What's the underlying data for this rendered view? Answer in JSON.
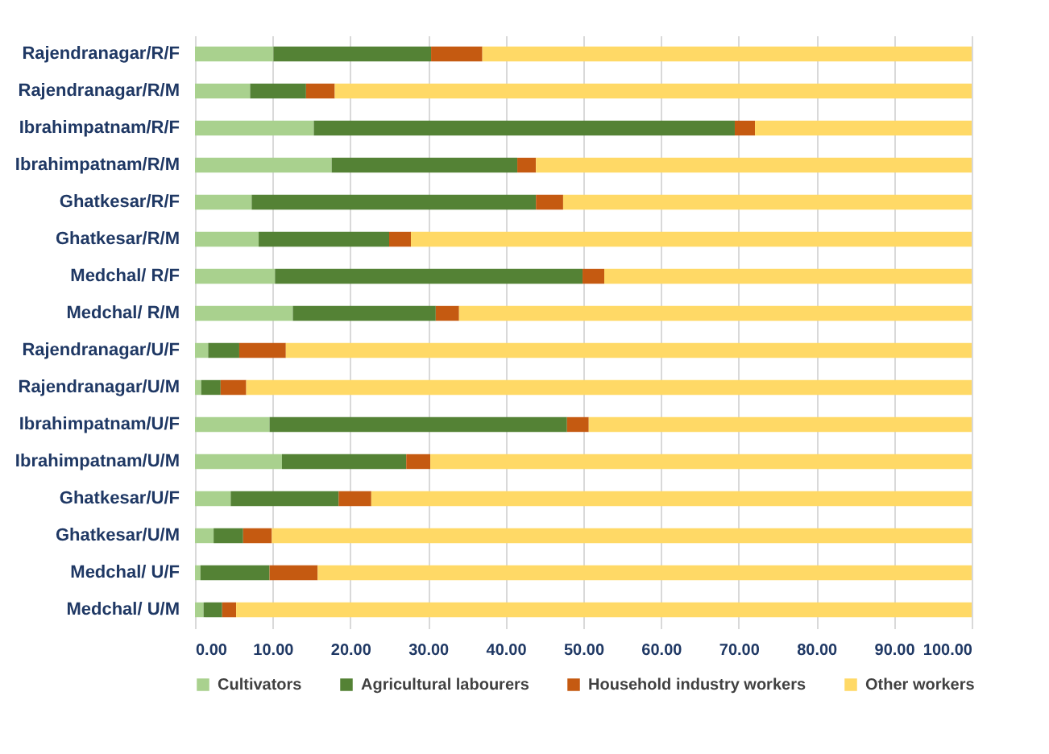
{
  "chart_data": {
    "type": "bar",
    "orientation": "horizontal",
    "stacked": true,
    "grid": "x",
    "legend": "bottom",
    "categories": [
      "Rajendranagar/R/F",
      "Rajendranagar/R/M",
      "Ibrahimpatnam/R/F",
      "Ibrahimpatnam/R/M",
      "Ghatkesar/R/F",
      "Ghatkesar/R/M",
      "Medchal/ R/F",
      "Medchal/ R/M",
      "Rajendranagar/U/F",
      "Rajendranagar/U/M",
      "Ibrahimpatnam/U/F",
      "Ibrahimpatnam/U/M",
      "Ghatkesar/U/F",
      "Ghatkesar/U/M",
      "Medchal/ U/F",
      "Medchal/ U/M"
    ],
    "series": [
      {
        "name": "Cultivators",
        "color": "#a9d18e",
        "values": [
          10.1,
          7.1,
          15.3,
          17.6,
          7.3,
          8.2,
          10.3,
          12.6,
          1.7,
          0.8,
          9.6,
          11.2,
          4.6,
          2.4,
          0.7,
          1.1
        ]
      },
      {
        "name": "Agricultural labourers",
        "color": "#548235",
        "values": [
          20.3,
          7.2,
          54.2,
          23.9,
          36.6,
          16.8,
          39.6,
          18.4,
          4.0,
          2.5,
          38.3,
          16.0,
          13.9,
          3.8,
          8.9,
          2.4
        ]
      },
      {
        "name": "Household industry workers",
        "color": "#c55a11",
        "values": [
          6.6,
          3.7,
          2.6,
          2.4,
          3.5,
          2.8,
          2.8,
          3.0,
          6.0,
          3.3,
          2.8,
          3.1,
          4.2,
          3.7,
          6.2,
          1.8
        ]
      },
      {
        "name": "Other workers",
        "color": "#ffd966",
        "values": [
          63.0,
          82.0,
          27.9,
          56.1,
          52.6,
          72.2,
          47.3,
          66.0,
          88.3,
          93.4,
          49.3,
          69.7,
          77.3,
          90.1,
          84.2,
          94.7
        ]
      }
    ],
    "xlim": [
      0,
      100
    ],
    "xticks": [
      {
        "value": 0,
        "label": "0.00"
      },
      {
        "value": 10,
        "label": "10.00"
      },
      {
        "value": 20,
        "label": "20.00"
      },
      {
        "value": 30,
        "label": "30.00"
      },
      {
        "value": 40,
        "label": "40.00"
      },
      {
        "value": 50,
        "label": "50.00"
      },
      {
        "value": 60,
        "label": "60.00"
      },
      {
        "value": 70,
        "label": "70.00"
      },
      {
        "value": 80,
        "label": "80.00"
      },
      {
        "value": 90,
        "label": "90.00"
      },
      {
        "value": 100,
        "label": "100.00"
      }
    ]
  }
}
